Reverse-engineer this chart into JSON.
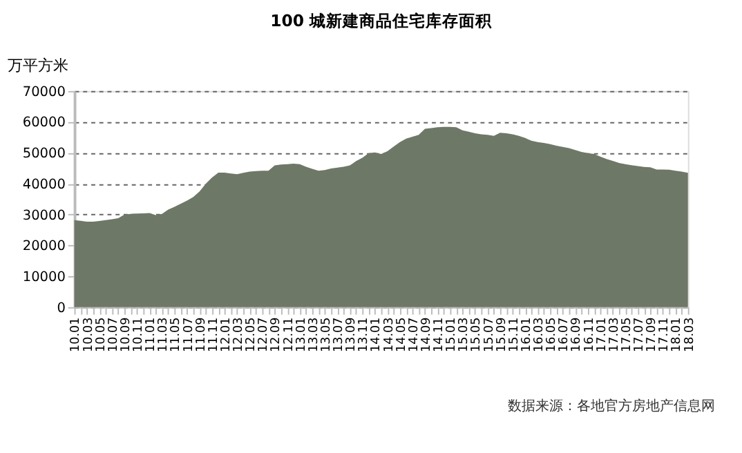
{
  "chart_data": {
    "type": "area",
    "title": "100 城新建商品住宅库存面积",
    "ylabel": "万平方米",
    "categories": [
      "10.01",
      null,
      "10.03",
      null,
      "10.05",
      null,
      "10.07",
      null,
      "10.09",
      null,
      "10.11",
      null,
      "11.01",
      null,
      "11.03",
      null,
      "11.05",
      null,
      "11.07",
      null,
      "11.09",
      null,
      "11.11",
      null,
      "12.01",
      null,
      "12.03",
      null,
      "12.05",
      null,
      "12.07",
      null,
      "12.09",
      null,
      "12.11",
      null,
      "13.01",
      null,
      "13.03",
      null,
      "13.05",
      null,
      "13.07",
      null,
      "13.09",
      null,
      "13.11",
      null,
      "14.01",
      null,
      "14.03",
      null,
      "14.05",
      null,
      "14.07",
      null,
      "14.09",
      null,
      "14.11",
      null,
      "15.01",
      null,
      "15.03",
      null,
      "15.05",
      null,
      "15.07",
      null,
      "15.09",
      null,
      "15.11",
      null,
      "16.01",
      null,
      "16.03",
      null,
      "16.05",
      null,
      "16.07",
      null,
      "16.09",
      null,
      "16.11",
      null,
      "17.01",
      null,
      "17.03",
      null,
      "17.05",
      null,
      "17.07",
      null,
      "17.09",
      null,
      "17.11",
      null,
      "18.01",
      null,
      "18.03"
    ],
    "series": [
      {
        "color": "#6e7866",
        "values": [
          28200,
          28000,
          27700,
          27700,
          27900,
          28200,
          28500,
          28800,
          30000,
          30200,
          30300,
          30400,
          30500,
          29800,
          30200,
          31600,
          32500,
          33500,
          34500,
          35700,
          37500,
          40000,
          42000,
          43600,
          43600,
          43300,
          43100,
          43500,
          43900,
          44100,
          44200,
          44200,
          45900,
          46200,
          46300,
          46500,
          46300,
          45500,
          44800,
          44200,
          44400,
          44900,
          45200,
          45500,
          45900,
          47300,
          48400,
          49900,
          50100,
          49600,
          50500,
          52000,
          53500,
          54600,
          55200,
          55800,
          57800,
          58000,
          58300,
          58400,
          58400,
          58300,
          57300,
          56800,
          56300,
          56000,
          55800,
          55500,
          56500,
          56300,
          56000,
          55500,
          54800,
          53900,
          53500,
          53200,
          52800,
          52300,
          51900,
          51500,
          50900,
          50300,
          49900,
          49600,
          48800,
          48000,
          47400,
          46700,
          46300,
          46000,
          45700,
          45400,
          45300,
          44600,
          44600,
          44500,
          44200,
          43900,
          43500
        ]
      }
    ],
    "ylim": [
      0,
      70000
    ],
    "yticks": [
      0,
      10000,
      20000,
      30000,
      40000,
      50000,
      60000,
      70000
    ],
    "grid": "y",
    "line_style": "dashed",
    "annotations": [
      "数据来源：各地官方房地产信息网"
    ]
  }
}
